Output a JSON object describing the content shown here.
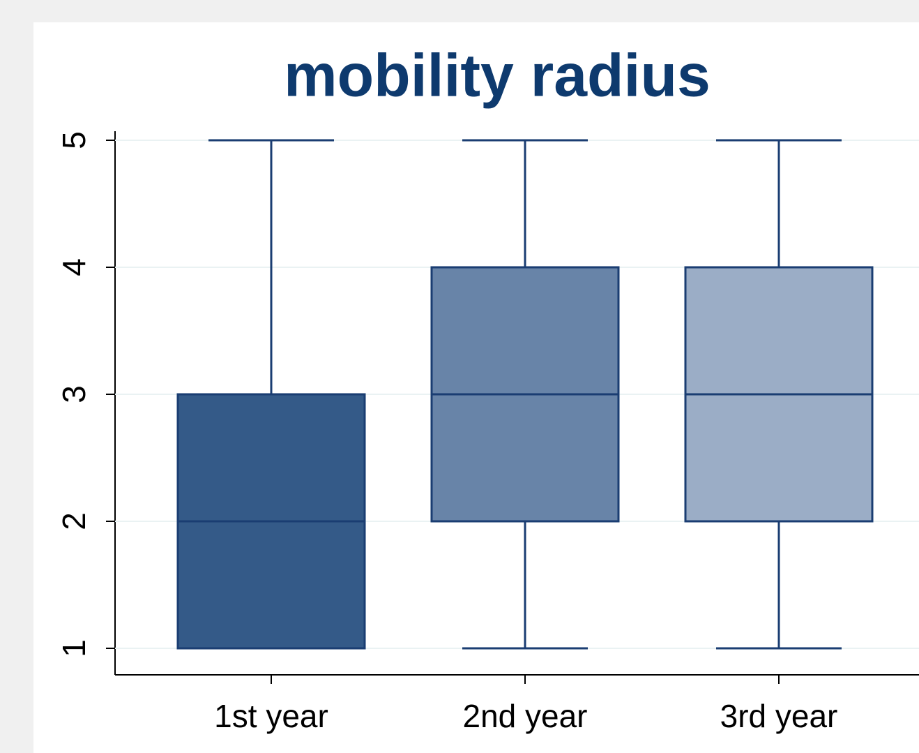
{
  "chart_data": {
    "type": "box",
    "title": "mobility radius",
    "categories": [
      "1st year",
      "2nd year",
      "3rd year"
    ],
    "min": [
      1,
      1,
      1
    ],
    "q1": [
      1,
      2,
      2
    ],
    "median": [
      2,
      3,
      3
    ],
    "q3": [
      3,
      4,
      4
    ],
    "max": [
      5,
      5,
      5
    ],
    "colors": [
      "#345a88",
      "#6884a8",
      "#9badc6"
    ],
    "line_color": "#1a3d72",
    "ylim": [
      1,
      5
    ],
    "yticks": [
      1,
      2,
      3,
      4,
      5
    ],
    "grid": true
  }
}
